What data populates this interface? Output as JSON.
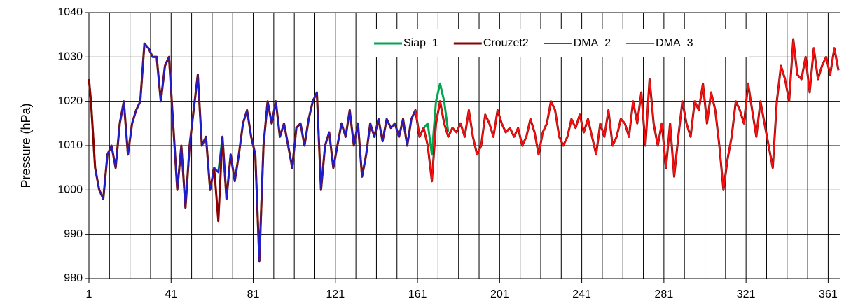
{
  "chart_data": {
    "type": "line",
    "y_label": "Pressure (hPa)",
    "xlim": [
      1,
      367
    ],
    "ylim": [
      980,
      1040
    ],
    "xticks": [
      1,
      41,
      81,
      121,
      161,
      201,
      241,
      281,
      321,
      361
    ],
    "xgrid": [
      11,
      21,
      31,
      41,
      51,
      61,
      71,
      81,
      91,
      101,
      111,
      121,
      131,
      141,
      151,
      161,
      171,
      181,
      191,
      201,
      211,
      221,
      231,
      241,
      251,
      261,
      271,
      281,
      291,
      301,
      311,
      321,
      331,
      341,
      351,
      361
    ],
    "yticks": [
      980,
      990,
      1000,
      1010,
      1020,
      1030,
      1040
    ],
    "grid": true,
    "legend": "top-right",
    "x": [
      1,
      2,
      4,
      6,
      8,
      10,
      12,
      14,
      16,
      18,
      20,
      22,
      24,
      26,
      28,
      30,
      32,
      34,
      36,
      38,
      40,
      42,
      44,
      46,
      48,
      50,
      52,
      54,
      56,
      58,
      60,
      62,
      64,
      66,
      68,
      70,
      72,
      74,
      76,
      78,
      80,
      82,
      84,
      86,
      88,
      90,
      92,
      94,
      96,
      98,
      100,
      102,
      104,
      106,
      108,
      110,
      112,
      114,
      116,
      118,
      120,
      122,
      124,
      126,
      128,
      130,
      132,
      134,
      136,
      138,
      140,
      142,
      144,
      146,
      148,
      150,
      152,
      154,
      156,
      158,
      160,
      162,
      164,
      166,
      168,
      170,
      172,
      174,
      176,
      178,
      180,
      182,
      184,
      186,
      188,
      190,
      192,
      194,
      196,
      198,
      200,
      202,
      204,
      206,
      208,
      210,
      212,
      214,
      216,
      218,
      220,
      222,
      224,
      226,
      228,
      230,
      232,
      234,
      236,
      238,
      240,
      242,
      244,
      246,
      248,
      250,
      252,
      254,
      256,
      258,
      260,
      262,
      264,
      266,
      268,
      270,
      272,
      274,
      276,
      278,
      280,
      282,
      284,
      286,
      288,
      290,
      292,
      294,
      296,
      298,
      300,
      302,
      304,
      306,
      308,
      310,
      312,
      314,
      316,
      318,
      320,
      322,
      324,
      326,
      328,
      330,
      332,
      334,
      336,
      338,
      340,
      342,
      344,
      346,
      348,
      350,
      352,
      354,
      356,
      358,
      360,
      362,
      364,
      366
    ],
    "series": [
      {
        "name": "Siap_1",
        "color": "#00a651",
        "width": 3,
        "values": [
          1025,
          1020,
          1005,
          1000,
          998,
          1008,
          1010,
          1005,
          1015,
          1020,
          1008,
          1015,
          1018,
          1020,
          1033,
          1032,
          1030,
          1030,
          1020,
          1028,
          1030,
          1015,
          1000,
          1010,
          996,
          1010,
          1018,
          1026,
          1010,
          1012,
          1000,
          1005,
          1004,
          1012,
          998,
          1008,
          1002,
          1008,
          1015,
          1018,
          1012,
          1008,
          984,
          1010,
          1020,
          1015,
          1020,
          1012,
          1015,
          1010,
          1005,
          1014,
          1015,
          1010,
          1016,
          1020,
          1022,
          1000,
          1010,
          1013,
          1005,
          1010,
          1015,
          1012,
          1018,
          1010,
          1015,
          1003,
          1008,
          1015,
          1012,
          1016,
          1011,
          1016,
          1014,
          1015,
          1012,
          1016,
          1010,
          1016,
          1018,
          1012,
          1014,
          1015,
          1008,
          1020,
          1024,
          1020,
          1013,
          null,
          null,
          null,
          null,
          null,
          null,
          null,
          null,
          null,
          null,
          null,
          null,
          null,
          null,
          null,
          null,
          null,
          null,
          null,
          null,
          null,
          null,
          null,
          null,
          null,
          null,
          null,
          null,
          null,
          null,
          null,
          null,
          null,
          null,
          null,
          null,
          null,
          null,
          null,
          null,
          null,
          null,
          null,
          null,
          null,
          null,
          null,
          null,
          null,
          null,
          null,
          null,
          null,
          null,
          null,
          null,
          null,
          null,
          null,
          null,
          null,
          null,
          null,
          null,
          null,
          null,
          null,
          null,
          null,
          null,
          null,
          null,
          null,
          null,
          null,
          null,
          null,
          null,
          null,
          null,
          null,
          null,
          null,
          null,
          null,
          null,
          null,
          null,
          null,
          null,
          null,
          null,
          null,
          null,
          null
        ]
      },
      {
        "name": "Crouzet2",
        "color": "#8b0000",
        "width": 3,
        "values": [
          1025,
          1020,
          1005,
          1000,
          998,
          1008,
          1010,
          1005,
          1015,
          1020,
          1008,
          1015,
          1018,
          1020,
          1033,
          1032,
          1030,
          1030,
          1020,
          1028,
          1030,
          1015,
          1000,
          1010,
          996,
          1010,
          1018,
          1026,
          1010,
          1012,
          1000,
          1005,
          993,
          1012,
          998,
          1008,
          1002,
          1008,
          1015,
          1018,
          1012,
          1008,
          984,
          1010,
          1020,
          1015,
          1020,
          1012,
          1015,
          1010,
          1005,
          1014,
          1015,
          1010,
          1016,
          1020,
          1022,
          1000,
          1010,
          1013,
          1005,
          1010,
          1015,
          1012,
          1018,
          1010,
          1015,
          1003,
          1008,
          1015,
          1012,
          1016,
          1011,
          1016,
          1014,
          1015,
          1012,
          1016,
          1010,
          1016,
          1018,
          1012,
          1014,
          1010,
          1002,
          1015,
          1020,
          1015,
          1012,
          1014,
          1013,
          1015,
          1012,
          1018,
          1012,
          1008,
          1010,
          1017,
          1015,
          1012,
          1018,
          1015,
          1013,
          1014,
          1012,
          1014,
          1010,
          1012,
          1016,
          1013,
          1008,
          1013,
          1015,
          1020,
          1018,
          1012,
          1010,
          1012,
          1016,
          1014,
          1017,
          1013,
          1016,
          1012,
          1008,
          1015,
          1012,
          1018,
          1010,
          1012,
          1016,
          1015,
          1012,
          1020,
          1015,
          1022,
          1010,
          1025,
          1015,
          1010,
          1015,
          1005,
          1015,
          1003,
          1012,
          1020,
          1015,
          1012,
          1020,
          1018,
          1024,
          1015,
          1022,
          1018,
          1010,
          1000,
          1007,
          1012,
          1020,
          1018,
          1015,
          1024,
          1018,
          1012,
          1020,
          1015,
          1010,
          1005,
          1020,
          1028,
          1025,
          1020,
          1034,
          1026,
          1025,
          1030,
          1022,
          1032,
          1025,
          1028,
          1030,
          1026,
          1032,
          1027
        ]
      },
      {
        "name": "DMA_2",
        "color": "#1f1fd0",
        "width": 1.8,
        "values": [
          null,
          null,
          1005,
          1000,
          998,
          1008,
          1010,
          1005,
          1015,
          1020,
          1008,
          1015,
          1018,
          1020,
          1033,
          1032,
          1030,
          1030,
          1020,
          1028,
          1030,
          1015,
          1000,
          1010,
          996,
          1010,
          1018,
          1026,
          1010,
          1012,
          1000,
          1005,
          1004,
          1012,
          998,
          1008,
          1002,
          1008,
          1015,
          1018,
          1012,
          1008,
          984,
          1010,
          1020,
          1015,
          1020,
          1012,
          1015,
          1010,
          1005,
          1014,
          1015,
          1010,
          1016,
          1020,
          1022,
          1000,
          1010,
          1013,
          1005,
          1010,
          1015,
          1012,
          1018,
          1010,
          1015,
          1003,
          1008,
          1015,
          1012,
          1016,
          1011,
          1016,
          1014,
          1015,
          1012,
          1016,
          1010,
          1016,
          1018,
          1012,
          1014,
          null,
          null,
          null,
          null,
          null,
          null,
          null,
          null,
          null,
          null,
          null,
          null,
          null,
          null,
          null,
          null,
          null,
          null,
          null,
          null,
          null,
          null,
          null,
          null,
          null,
          null,
          null,
          null,
          null,
          null,
          null,
          null,
          null,
          null,
          null,
          null,
          null,
          null,
          null,
          null,
          null,
          null,
          null,
          null,
          null,
          null,
          null,
          null,
          null,
          null,
          null,
          null,
          null,
          null,
          null,
          null,
          null,
          null,
          null,
          null,
          null,
          1012,
          1020,
          1015,
          null,
          null,
          null,
          null,
          null,
          null,
          null,
          null,
          null,
          null,
          null,
          null,
          null,
          null,
          null,
          null,
          null,
          null,
          null,
          null,
          null,
          null,
          null,
          null,
          null,
          null,
          null,
          null,
          null,
          null,
          null,
          null,
          null,
          null,
          null,
          null,
          null
        ]
      },
      {
        "name": "DMA_3",
        "color": "#ff1010",
        "width": 1.8,
        "values": [
          null,
          null,
          null,
          null,
          null,
          null,
          null,
          null,
          null,
          null,
          null,
          null,
          null,
          null,
          null,
          null,
          null,
          null,
          null,
          null,
          null,
          null,
          null,
          null,
          null,
          null,
          null,
          null,
          null,
          null,
          null,
          null,
          null,
          null,
          null,
          null,
          null,
          null,
          null,
          null,
          null,
          null,
          null,
          null,
          null,
          null,
          null,
          null,
          null,
          null,
          null,
          null,
          null,
          null,
          null,
          null,
          null,
          null,
          null,
          null,
          null,
          null,
          null,
          null,
          null,
          null,
          null,
          null,
          null,
          null,
          null,
          null,
          null,
          null,
          null,
          null,
          null,
          null,
          null,
          null,
          1018,
          1012,
          1014,
          1010,
          1002,
          1015,
          1020,
          1015,
          1012,
          1014,
          1013,
          1015,
          1012,
          1018,
          1012,
          1008,
          1010,
          1017,
          1015,
          1012,
          1018,
          1015,
          1013,
          1014,
          1012,
          1014,
          1010,
          1012,
          1016,
          1013,
          1008,
          1013,
          1015,
          1020,
          1018,
          1012,
          1010,
          1012,
          1016,
          1014,
          1017,
          1013,
          1016,
          1012,
          1008,
          1015,
          1012,
          1018,
          1010,
          1012,
          1016,
          1015,
          1012,
          1020,
          1015,
          1022,
          1010,
          1025,
          1015,
          1010,
          1015,
          1005,
          1015,
          1003,
          1012,
          1020,
          1015,
          1012,
          1020,
          1018,
          1024,
          1015,
          1022,
          1018,
          1010,
          1000,
          1007,
          1012,
          1020,
          1018,
          1015,
          1024,
          1018,
          1012,
          1020,
          1015,
          1010,
          1005,
          1020,
          1028,
          1025,
          1020,
          1034,
          1026,
          1025,
          1030,
          1022,
          1032,
          1025,
          1028,
          1030,
          1026,
          1032,
          1027
        ]
      }
    ]
  }
}
